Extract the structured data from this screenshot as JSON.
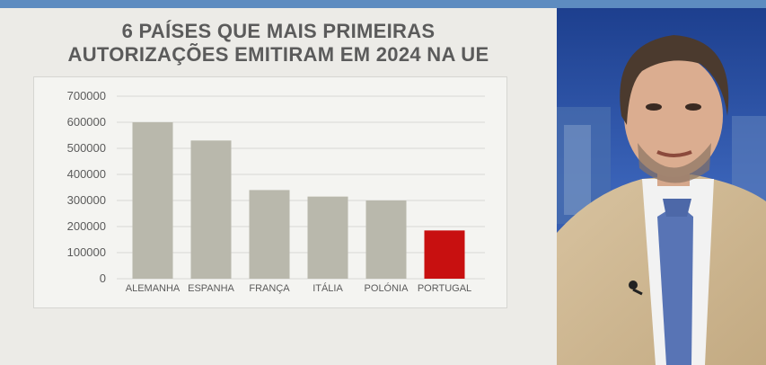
{
  "title_lines": [
    "6 PAÍSES QUE MAIS PRIMEIRAS",
    "AUTORIZAÇÕES EMITIRAM EM 2024 NA UE"
  ],
  "colors": {
    "bar": "#b9b8ac",
    "highlight": "#c81010",
    "grid": "#d9d9d5",
    "text": "#5b5b5b",
    "topbar": "#5d8cc0"
  },
  "chart_data": {
    "type": "bar",
    "title": "6 PAÍSES QUE MAIS PRIMEIRAS AUTORIZAÇÕES EMITIRAM EM 2024 NA UE",
    "categories": [
      "ALEMANHA",
      "ESPANHA",
      "FRANÇA",
      "ITÁLIA",
      "POLÓNIA",
      "PORTUGAL"
    ],
    "values": [
      600000,
      530000,
      340000,
      315000,
      300000,
      185000
    ],
    "highlight_index": 5,
    "yticks": [
      "700000",
      "600000",
      "500000",
      "400000",
      "300000",
      "200000",
      "100000",
      "0"
    ],
    "ylim": [
      0,
      700000
    ],
    "grid": true,
    "xlabel": "",
    "ylabel": ""
  }
}
